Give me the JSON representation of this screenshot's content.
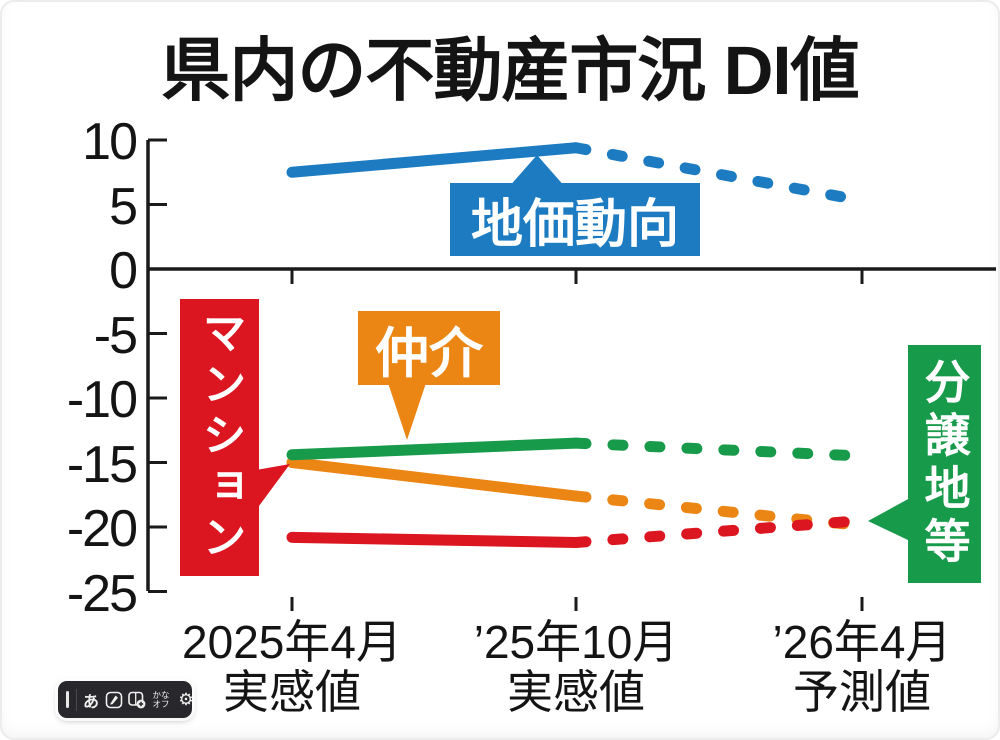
{
  "title": "県内の不動産市況 DI値",
  "chart_data": {
    "type": "line",
    "title": "県内の不動産市況 DI値",
    "x_categories": [
      "2025年4月",
      "’25年10月",
      "’26年4月"
    ],
    "x_sublabels": [
      "実感値",
      "実感値",
      "予測値"
    ],
    "y_ticks": [
      10,
      5,
      0,
      -5,
      -10,
      -15,
      -20,
      -25
    ],
    "ylim": [
      -25,
      10
    ],
    "grid": false,
    "legend_position": "callouts-on-chart",
    "forecast_from_index": 1,
    "forecast_style": "dashed",
    "series": [
      {
        "name": "地価動向",
        "color": "#1c7bc1",
        "values": [
          7.5,
          9.4,
          5.3
        ]
      },
      {
        "name": "分譲地等",
        "color": "#189a4b",
        "values": [
          -14.4,
          -13.5,
          -14.5
        ]
      },
      {
        "name": "仲介",
        "color": "#eb8513",
        "values": [
          -15.0,
          -17.6,
          -19.9
        ]
      },
      {
        "name": "マンション",
        "color": "#dc1620",
        "values": [
          -20.8,
          -21.2,
          -19.5
        ]
      }
    ]
  },
  "ime_toolbar": {
    "mode": "あ",
    "kana": "かな",
    "off": "オフ",
    "gear": "⚙",
    "icons": [
      "drag-handle",
      "hiragana-mode",
      "pen-tool",
      "dictionary-add",
      "kana-off-toggle",
      "settings-gear"
    ]
  }
}
